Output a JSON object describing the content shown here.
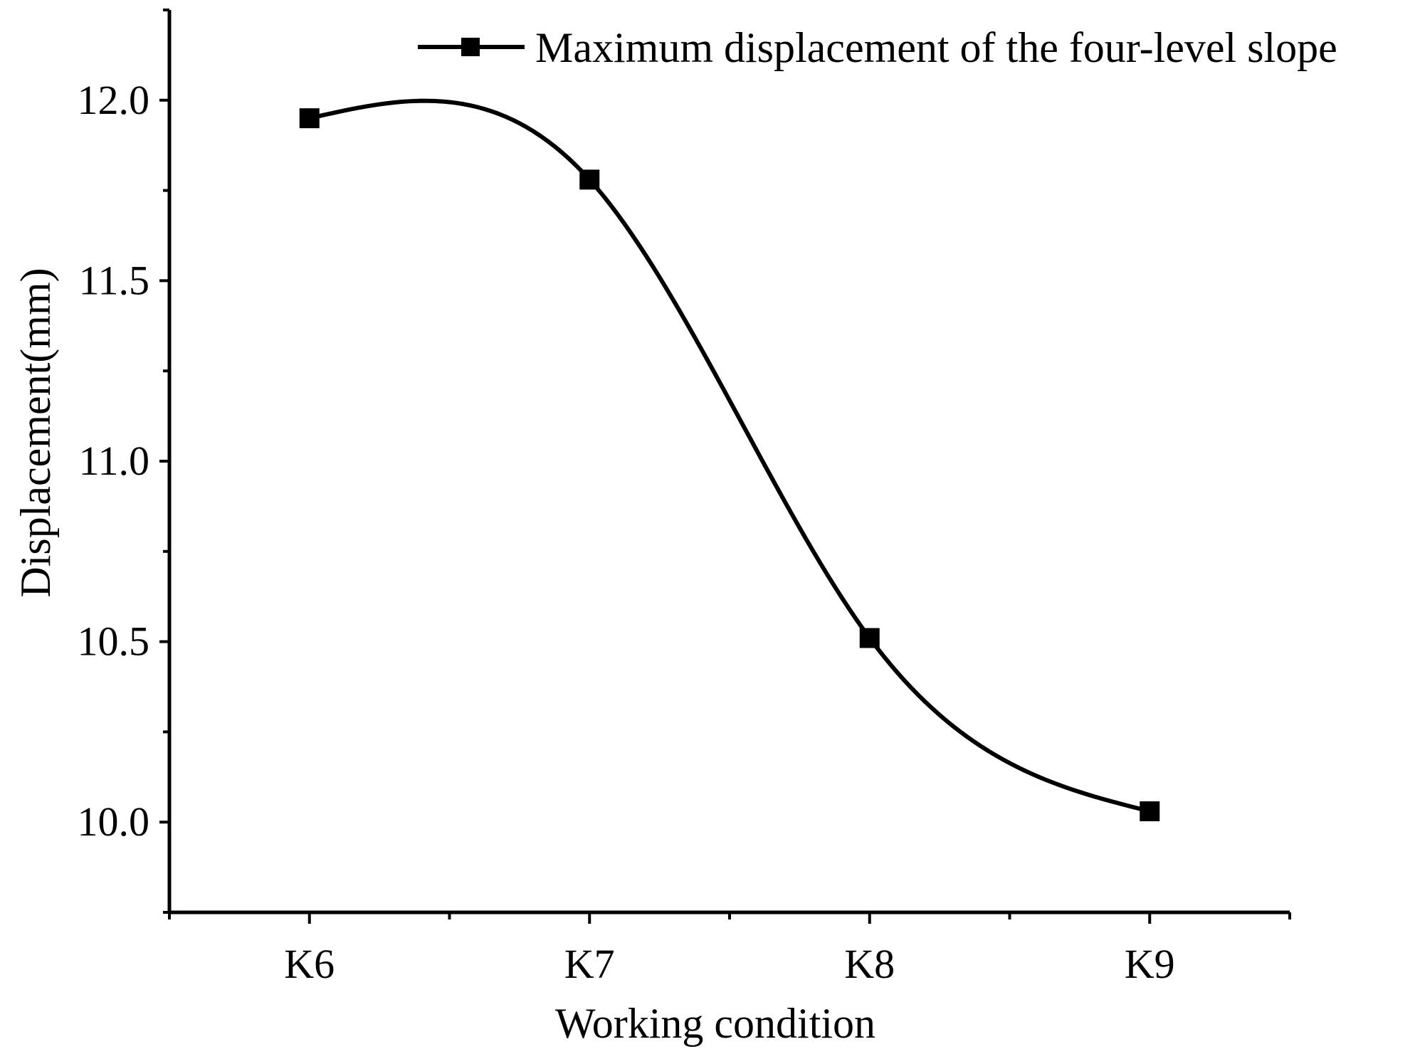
{
  "chart_data": {
    "type": "line",
    "title": "",
    "xlabel": "Working condition",
    "ylabel": "Displacement(mm)",
    "categories": [
      "K6",
      "K7",
      "K8",
      "K9"
    ],
    "series": [
      {
        "name": "Maximum displacement of the four-level slope",
        "values": [
          11.95,
          11.78,
          10.51,
          10.03
        ],
        "color": "#000000",
        "marker": "square",
        "smooth": true
      }
    ],
    "ylim": [
      9.75,
      12.25
    ],
    "yticks": [
      10.0,
      10.5,
      11.0,
      11.5,
      12.0
    ],
    "yticks_labels": [
      "10.0",
      "10.5",
      "11.0",
      "11.5",
      "12.0"
    ],
    "y_minor_step": 0.25,
    "x_range": [
      -0.5,
      3.5
    ],
    "x_minor_ticks": [
      -0.5,
      0.5,
      1.5,
      2.5,
      3.5
    ],
    "grid": false,
    "legend_position": "top-right"
  }
}
